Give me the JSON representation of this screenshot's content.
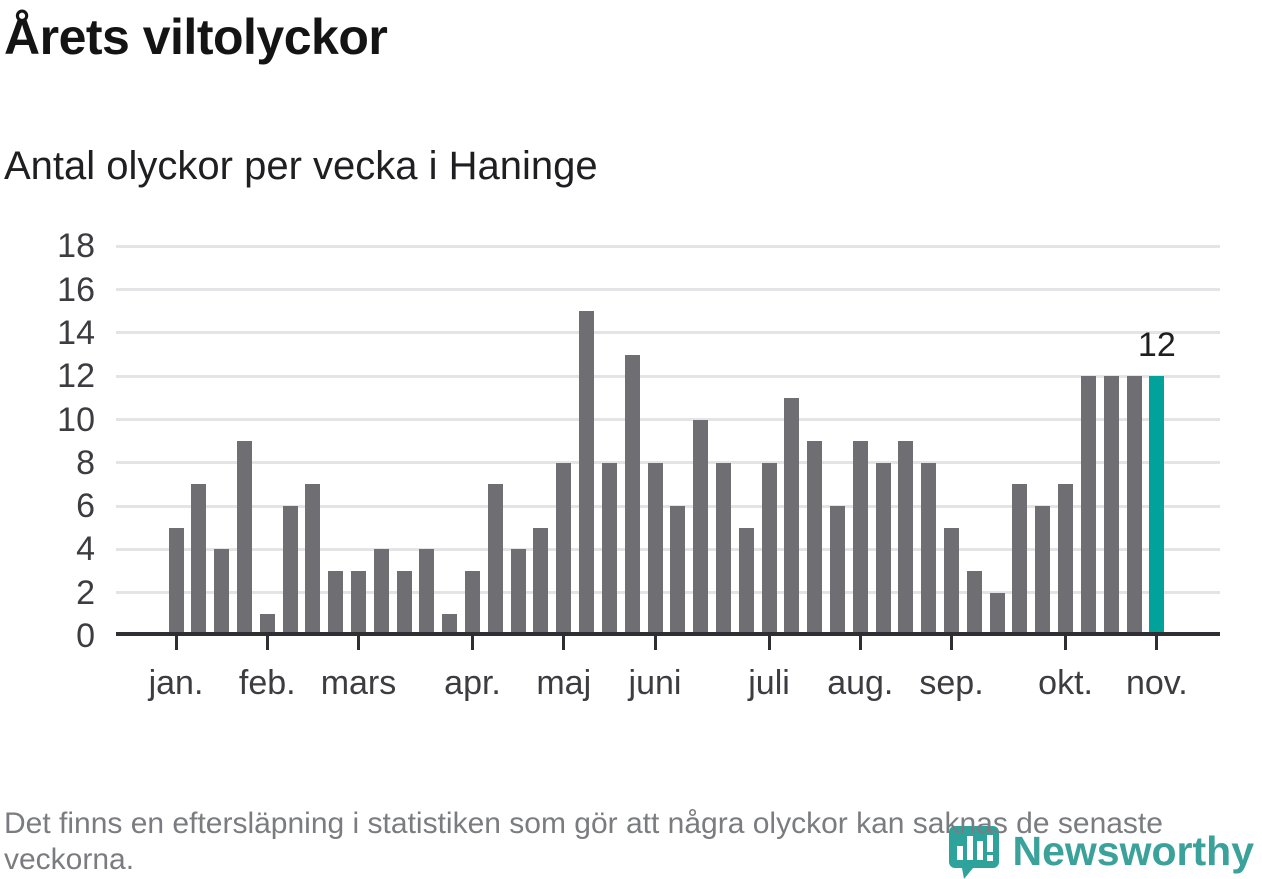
{
  "page": {
    "title": "Årets viltolyckor",
    "subtitle": "Antal olyckor per vecka i Haninge",
    "footnote": "Det finns en eftersläpning i statistiken som gör att några olyckor kan saknas de senaste veckorna.",
    "brand": "Newsworthy"
  },
  "colors": {
    "bar": "#6e6e73",
    "highlight": "#00a29a",
    "grid": "#e4e4e6",
    "axis": "#2e2e33",
    "tick_label": "#3c3c41",
    "footnote": "#7b7c80",
    "brand": "#3aa29b"
  },
  "chart_data": {
    "type": "bar",
    "title": "Årets viltolyckor",
    "subtitle": "Antal olyckor per vecka i Haninge",
    "xlabel": "",
    "ylabel": "",
    "ylim": [
      0,
      18
    ],
    "yticks": [
      0,
      2,
      4,
      6,
      8,
      10,
      12,
      14,
      16,
      18
    ],
    "grid": "horizontal",
    "x_unit": "week",
    "weeks": [
      1,
      2,
      3,
      4,
      5,
      6,
      7,
      8,
      9,
      10,
      11,
      12,
      13,
      14,
      15,
      16,
      17,
      18,
      19,
      20,
      21,
      22,
      23,
      24,
      25,
      26,
      27,
      28,
      29,
      30,
      31,
      32,
      33,
      34,
      35,
      36,
      37,
      38,
      39,
      40,
      41,
      42,
      43,
      44
    ],
    "values": [
      5,
      7,
      4,
      9,
      1,
      6,
      7,
      3,
      3,
      4,
      3,
      4,
      1,
      3,
      7,
      4,
      5,
      8,
      15,
      8,
      13,
      8,
      6,
      10,
      8,
      5,
      8,
      11,
      9,
      6,
      9,
      8,
      9,
      8,
      5,
      3,
      2,
      7,
      6,
      7,
      12,
      12,
      12,
      12
    ],
    "highlight_index": 43,
    "highlight_label": "12",
    "month_ticks": [
      {
        "label": "jan.",
        "week": 1
      },
      {
        "label": "feb.",
        "week": 5
      },
      {
        "label": "mars",
        "week": 9
      },
      {
        "label": "apr.",
        "week": 14
      },
      {
        "label": "maj",
        "week": 18
      },
      {
        "label": "juni",
        "week": 22
      },
      {
        "label": "juli",
        "week": 27
      },
      {
        "label": "aug.",
        "week": 31
      },
      {
        "label": "sep.",
        "week": 35
      },
      {
        "label": "okt.",
        "week": 40
      },
      {
        "label": "nov.",
        "week": 44
      }
    ]
  }
}
